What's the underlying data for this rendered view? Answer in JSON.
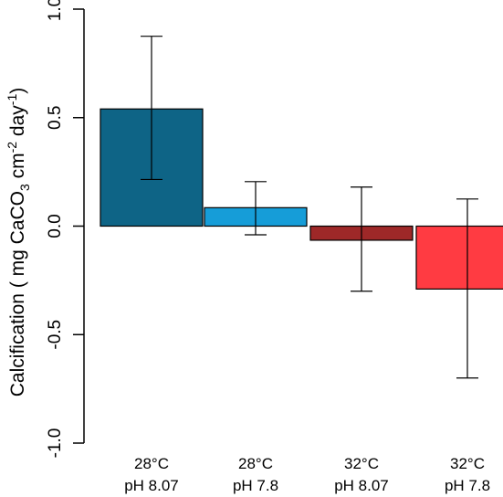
{
  "chart_data": {
    "type": "bar",
    "categories": [
      {
        "line1": "28°C",
        "line2": "pH 8.07"
      },
      {
        "line1": "28°C",
        "line2": "pH 7.8"
      },
      {
        "line1": "32°C",
        "line2": "pH 8.07"
      },
      {
        "line1": "32°C",
        "line2": "pH 7.8"
      }
    ],
    "values": [
      0.54,
      0.085,
      -0.065,
      -0.29
    ],
    "error_low": [
      0.215,
      -0.04,
      -0.3,
      -0.7
    ],
    "error_high": [
      0.875,
      0.205,
      0.18,
      0.125
    ],
    "colors": [
      "#0e6486",
      "#169dd8",
      "#9e2828",
      "#ff3b42"
    ],
    "ylim": [
      -1.0,
      1.0
    ],
    "yticks": [
      -1.0,
      -0.5,
      0.0,
      0.5,
      1.0
    ],
    "ytick_labels": [
      "-1.0",
      "-0.5",
      "0.0",
      "0.5",
      "1.0"
    ],
    "ylabel": {
      "main": "Calcification ( mg CaCO",
      "sub": "3",
      "mid": " cm",
      "sup1": "-2",
      "mid2": " day",
      "sup2": "-1",
      "end": ")"
    },
    "xlabel": "",
    "title": "",
    "grid": false
  }
}
